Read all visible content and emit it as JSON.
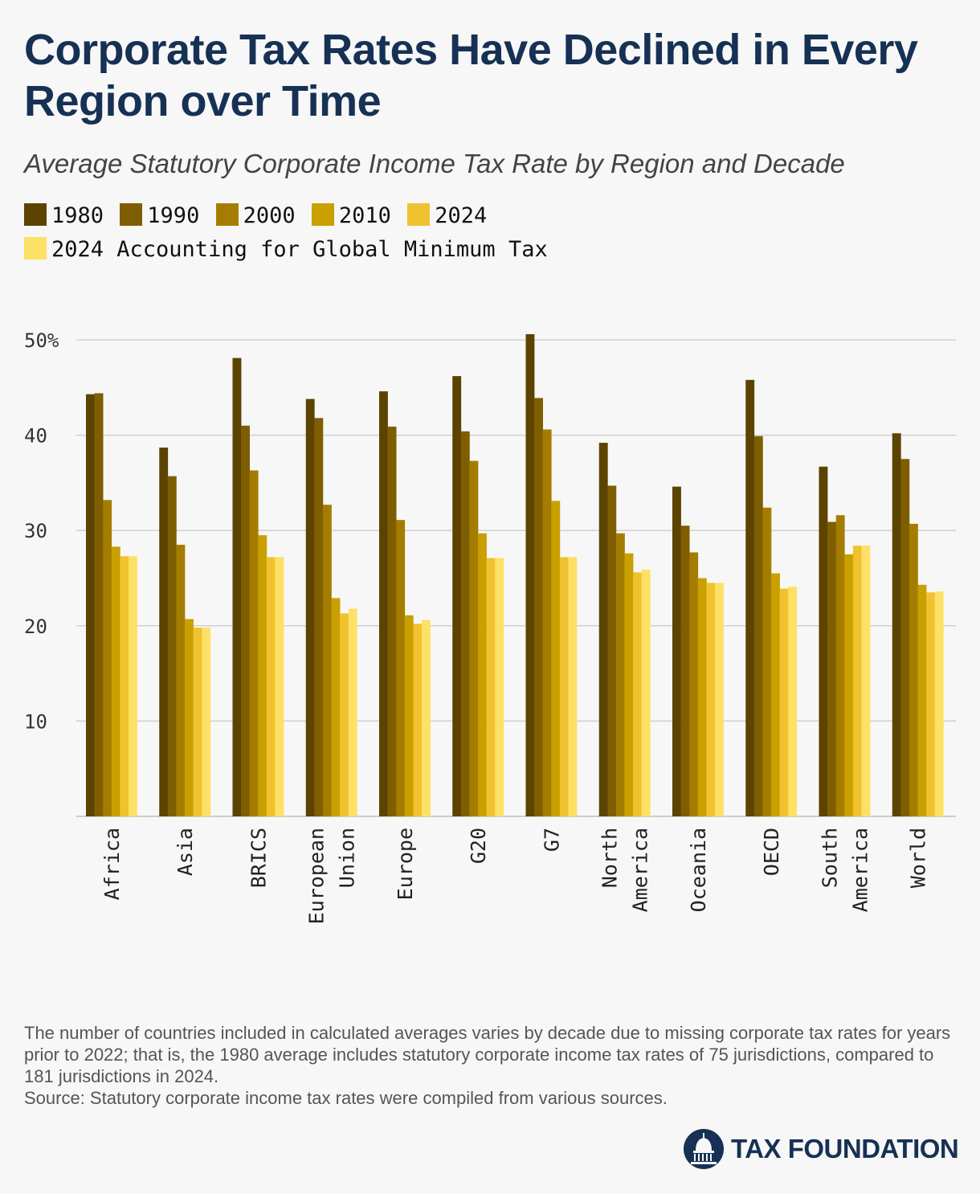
{
  "title": "Corporate Tax Rates Have Declined in Every Region over Time",
  "subtitle": "Average Statutory Corporate Income Tax Rate by Region and Decade",
  "footnote": "The number of countries included in calculated averages varies by decade due to missing corporate tax rates for years prior to 2022; that is, the 1980 average includes statutory corporate income tax rates of 75 jurisdictions, compared to 181 jurisdictions in 2024.",
  "source": "Source: Statutory corporate income tax rates were compiled from various sources.",
  "logo": {
    "text": "TAX FOUNDATION",
    "icon": "capitol-dome-icon"
  },
  "colors": {
    "title": "#163154",
    "series": [
      "#5c4300",
      "#7e5e00",
      "#a47d00",
      "#c9a000",
      "#f0c230",
      "#fde166"
    ],
    "grid": "#d0d0d0"
  },
  "chart_data": {
    "type": "bar",
    "legend_position": "top",
    "grid": true,
    "ylim": [
      0,
      50
    ],
    "yticks": [
      10,
      20,
      30,
      40,
      50
    ],
    "ytick_labels": [
      "10",
      "20",
      "30",
      "40",
      "50%"
    ],
    "categories": [
      "Africa",
      "Asia",
      "BRICS",
      "European Union",
      "Europe",
      "G20",
      "G7",
      "North America",
      "Oceania",
      "OECD",
      "South America",
      "World"
    ],
    "category_label_lines": [
      [
        "Africa"
      ],
      [
        "Asia"
      ],
      [
        "BRICS"
      ],
      [
        "European",
        "Union"
      ],
      [
        "Europe"
      ],
      [
        "G20"
      ],
      [
        "G7"
      ],
      [
        "North",
        "America"
      ],
      [
        "Oceania"
      ],
      [
        "OECD"
      ],
      [
        "South",
        "America"
      ],
      [
        "World"
      ]
    ],
    "series": [
      {
        "name": "1980",
        "values": [
          44.3,
          38.7,
          48.1,
          43.8,
          44.6,
          46.2,
          50.6,
          39.2,
          34.6,
          45.8,
          36.7,
          40.2
        ]
      },
      {
        "name": "1990",
        "values": [
          44.4,
          35.7,
          41.0,
          41.8,
          40.9,
          40.4,
          43.9,
          34.7,
          30.5,
          39.9,
          30.9,
          37.5
        ]
      },
      {
        "name": "2000",
        "values": [
          33.2,
          28.5,
          36.3,
          32.7,
          31.1,
          37.3,
          40.6,
          29.7,
          27.7,
          32.4,
          31.6,
          30.7
        ]
      },
      {
        "name": "2010",
        "values": [
          28.3,
          20.7,
          29.5,
          22.9,
          21.1,
          29.7,
          33.1,
          27.6,
          25.0,
          25.5,
          27.5,
          24.3
        ]
      },
      {
        "name": "2024",
        "values": [
          27.3,
          19.8,
          27.2,
          21.3,
          20.2,
          27.1,
          27.2,
          25.6,
          24.5,
          23.9,
          28.4,
          23.5
        ]
      },
      {
        "name": "2024 Accounting for Global Minimum Tax",
        "values": [
          27.3,
          19.8,
          27.2,
          21.8,
          20.6,
          27.1,
          27.2,
          25.9,
          24.5,
          24.1,
          28.4,
          23.6
        ]
      }
    ]
  }
}
